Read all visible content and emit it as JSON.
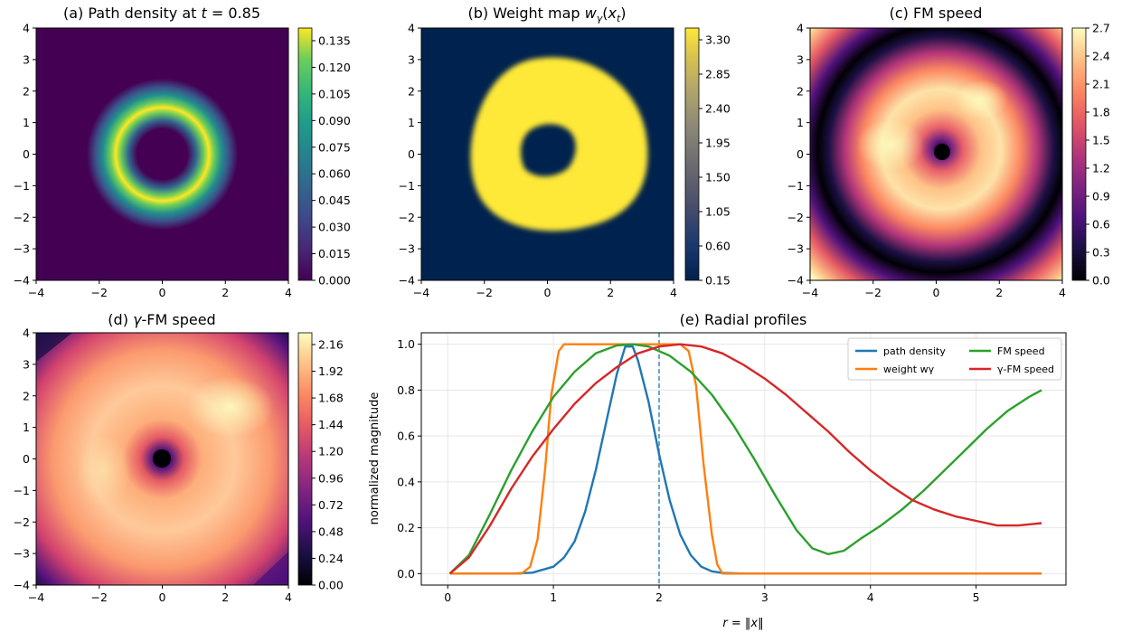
{
  "panels": {
    "a": {
      "title_main": "(a) Path density at ",
      "title_math": "t",
      "title_tail": " = 0.85",
      "xticks": [
        "−4",
        "−2",
        "0",
        "2",
        "4"
      ],
      "yticks": [
        "4",
        "3",
        "2",
        "1",
        "0",
        "−1",
        "−2",
        "−3",
        "−4"
      ],
      "colorbar_ticks": [
        "0.135",
        "0.120",
        "0.105",
        "0.090",
        "0.075",
        "0.060",
        "0.045",
        "0.030",
        "0.015",
        "0.000"
      ],
      "colormap": "viridis",
      "cbar_range": [
        0,
        0.14
      ]
    },
    "b": {
      "title_main": "(b) Weight map ",
      "title_math": "wγ(xt)",
      "xticks": [
        "−4",
        "−2",
        "0",
        "2",
        "4"
      ],
      "yticks": [
        "4",
        "3",
        "2",
        "1",
        "0",
        "−1",
        "−2",
        "−3",
        "−4"
      ],
      "colorbar_ticks": [
        "3.30",
        "2.85",
        "2.40",
        "1.95",
        "1.50",
        "1.05",
        "0.60",
        "0.15"
      ],
      "colormap": "cividis",
      "cbar_range": [
        0.15,
        3.45
      ]
    },
    "c": {
      "title_main": "(c) FM speed",
      "xticks": [
        "−4",
        "−2",
        "0",
        "2",
        "4"
      ],
      "yticks": [
        "4",
        "3",
        "2",
        "1",
        "0",
        "−1",
        "−2",
        "−3",
        "−4"
      ],
      "colorbar_ticks": [
        "2.7",
        "2.4",
        "2.1",
        "1.8",
        "1.5",
        "1.2",
        "0.9",
        "0.6",
        "0.3",
        "0.0"
      ],
      "colormap": "magma",
      "cbar_range": [
        0,
        2.7
      ]
    },
    "d": {
      "title_main": "(d) ",
      "title_math": "γ",
      "title_tail": "-FM speed",
      "xticks": [
        "−4",
        "−2",
        "0",
        "2",
        "4"
      ],
      "yticks": [
        "4",
        "3",
        "2",
        "1",
        "0",
        "−1",
        "−2",
        "−3",
        "−4"
      ],
      "colorbar_ticks": [
        "2.16",
        "1.92",
        "1.68",
        "1.44",
        "1.20",
        "0.96",
        "0.72",
        "0.48",
        "0.24",
        "0.00"
      ],
      "colormap": "magma",
      "cbar_range": [
        0,
        2.28
      ]
    }
  },
  "chart_data": {
    "type": "line",
    "title": "(e) Radial profiles",
    "xlabel": "r = ‖x‖",
    "ylabel": "normalized magnitude",
    "xlim": [
      -0.25,
      5.85
    ],
    "ylim": [
      -0.05,
      1.05
    ],
    "xticks": [
      "0",
      "1",
      "2",
      "3",
      "4",
      "5"
    ],
    "yticks": [
      "0.0",
      "0.2",
      "0.4",
      "0.6",
      "0.8",
      "1.0"
    ],
    "grid": true,
    "vline_x": 2.0,
    "legend_position": "top-right",
    "series": [
      {
        "name": "path density",
        "color": "#1f77b4",
        "x": [
          0.02,
          0.6,
          0.8,
          1.0,
          1.1,
          1.2,
          1.3,
          1.4,
          1.5,
          1.6,
          1.68,
          1.75,
          1.8,
          1.9,
          2.0,
          2.1,
          2.2,
          2.3,
          2.4,
          2.5,
          2.6,
          2.8,
          3.0,
          4.0,
          5.0,
          5.62
        ],
        "y": [
          0.0,
          0.0,
          0.004,
          0.03,
          0.07,
          0.14,
          0.27,
          0.45,
          0.66,
          0.87,
          0.99,
          0.99,
          0.93,
          0.75,
          0.52,
          0.32,
          0.17,
          0.08,
          0.03,
          0.01,
          0.003,
          0.0,
          0.0,
          0.0,
          0.0,
          0.0
        ]
      },
      {
        "name": "weight wγ",
        "color": "#ff7f0e",
        "x": [
          0.02,
          0.7,
          0.78,
          0.85,
          0.92,
          0.98,
          1.05,
          1.1,
          2.2,
          2.28,
          2.35,
          2.42,
          2.5,
          2.55,
          2.6,
          3.0,
          4.0,
          5.0,
          5.62
        ],
        "y": [
          0.0,
          0.0,
          0.03,
          0.15,
          0.45,
          0.78,
          0.97,
          1.0,
          1.0,
          0.97,
          0.82,
          0.48,
          0.17,
          0.04,
          0.0,
          0.0,
          0.0,
          0.0,
          0.0
        ]
      },
      {
        "name": "FM speed",
        "color": "#2ca02c",
        "x": [
          0.02,
          0.2,
          0.4,
          0.6,
          0.8,
          1.0,
          1.2,
          1.4,
          1.6,
          1.75,
          1.9,
          2.1,
          2.3,
          2.5,
          2.7,
          2.9,
          3.1,
          3.3,
          3.45,
          3.6,
          3.75,
          3.9,
          4.1,
          4.3,
          4.5,
          4.7,
          4.9,
          5.1,
          5.3,
          5.5,
          5.62
        ],
        "y": [
          0.0,
          0.08,
          0.26,
          0.45,
          0.62,
          0.77,
          0.88,
          0.96,
          0.995,
          1.0,
          0.99,
          0.95,
          0.88,
          0.78,
          0.65,
          0.5,
          0.34,
          0.19,
          0.11,
          0.085,
          0.1,
          0.15,
          0.21,
          0.28,
          0.36,
          0.45,
          0.54,
          0.63,
          0.71,
          0.77,
          0.8
        ]
      },
      {
        "name": "γ-FM speed",
        "color": "#d62728",
        "x": [
          0.02,
          0.2,
          0.4,
          0.6,
          0.8,
          1.0,
          1.2,
          1.4,
          1.6,
          1.8,
          2.0,
          2.2,
          2.4,
          2.6,
          2.8,
          3.0,
          3.2,
          3.4,
          3.6,
          3.8,
          4.0,
          4.2,
          4.4,
          4.6,
          4.8,
          5.0,
          5.2,
          5.4,
          5.62
        ],
        "y": [
          0.0,
          0.07,
          0.21,
          0.37,
          0.51,
          0.63,
          0.74,
          0.83,
          0.9,
          0.96,
          0.99,
          1.0,
          0.99,
          0.96,
          0.91,
          0.85,
          0.78,
          0.7,
          0.62,
          0.53,
          0.45,
          0.38,
          0.32,
          0.28,
          0.25,
          0.23,
          0.21,
          0.21,
          0.22
        ]
      }
    ]
  }
}
